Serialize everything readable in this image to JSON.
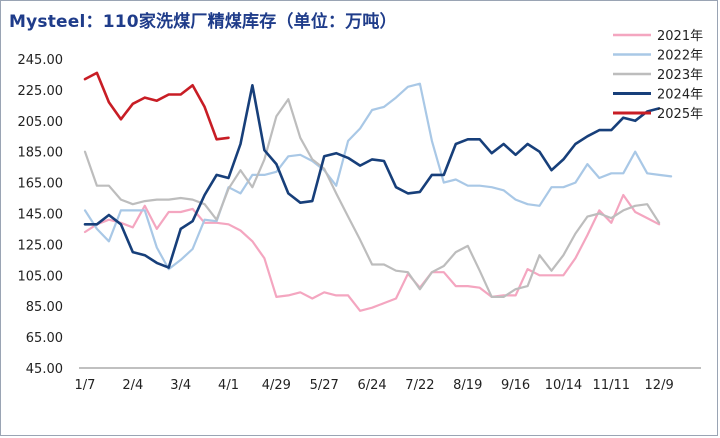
{
  "chart_data": {
    "type": "line",
    "title": "Mysteel：110家洗煤厂精煤库存（单位：万吨）",
    "ylim": [
      45,
      245
    ],
    "y_ticks": [
      "45.00",
      "65.00",
      "85.00",
      "105.00",
      "125.00",
      "145.00",
      "165.00",
      "185.00",
      "205.00",
      "225.00",
      "245.00"
    ],
    "x_tick_labels": [
      "1/7",
      "2/4",
      "3/4",
      "4/1",
      "4/29",
      "5/27",
      "6/24",
      "7/22",
      "8/19",
      "9/16",
      "10/14",
      "11/11",
      "12/9"
    ],
    "x_tick_index": [
      0,
      4,
      8,
      12,
      16,
      20,
      24,
      28,
      32,
      36,
      40,
      44,
      48
    ],
    "legend_position": "top-right",
    "series": [
      {
        "name": "2021年",
        "color": "#f4a6c0",
        "width": 2.2,
        "values": [
          133,
          138,
          141,
          139,
          136,
          150,
          135,
          146,
          146,
          148,
          139,
          139,
          138,
          134,
          127,
          116,
          91,
          92,
          94,
          90,
          94,
          92,
          92,
          82,
          84,
          87,
          90,
          106,
          97,
          107,
          107,
          98,
          98,
          97,
          91,
          92,
          92,
          109,
          105,
          105,
          105,
          116,
          131,
          147,
          139,
          157,
          146,
          142,
          138
        ]
      },
      {
        "name": "2022年",
        "color": "#a9c8e6",
        "width": 2.2,
        "values": [
          147,
          135,
          127,
          147,
          147,
          147,
          123,
          109,
          115,
          122,
          141,
          140,
          162,
          158,
          170,
          170,
          172,
          182,
          183,
          179,
          173,
          163,
          192,
          200,
          212,
          214,
          220,
          227,
          229,
          192,
          165,
          167,
          163,
          163,
          162,
          160,
          154,
          151,
          150,
          162,
          162,
          165,
          177,
          168,
          171,
          171,
          185,
          171,
          170,
          169
        ]
      },
      {
        "name": "2023年",
        "color": "#bdbdbd",
        "width": 2.2,
        "values": [
          185,
          163,
          163,
          154,
          151,
          153,
          154,
          154,
          155,
          154,
          151,
          141,
          161,
          173,
          162,
          180,
          208,
          219,
          194,
          180,
          174,
          158,
          143,
          128,
          112,
          112,
          108,
          107,
          96,
          107,
          111,
          120,
          124,
          108,
          91,
          91,
          96,
          98,
          118,
          108,
          118,
          132,
          143,
          145,
          142,
          147,
          150,
          151,
          139
        ]
      },
      {
        "name": "2024年",
        "color": "#173f7a",
        "width": 2.6,
        "values": [
          138,
          138,
          144,
          138,
          120,
          118,
          113,
          110,
          135,
          140,
          157,
          170,
          168,
          190,
          228,
          186,
          177,
          158,
          152,
          153,
          182,
          184,
          181,
          176,
          180,
          179,
          162,
          158,
          159,
          170,
          170,
          190,
          193,
          193,
          184,
          190,
          183,
          190,
          185,
          173,
          180,
          190,
          195,
          199,
          199,
          207,
          205,
          211,
          213
        ]
      },
      {
        "name": "2025年",
        "color": "#c81d25",
        "width": 2.6,
        "values": [
          232,
          236,
          217,
          206,
          216,
          220,
          218,
          222,
          222,
          228,
          214,
          193,
          194
        ]
      }
    ]
  }
}
